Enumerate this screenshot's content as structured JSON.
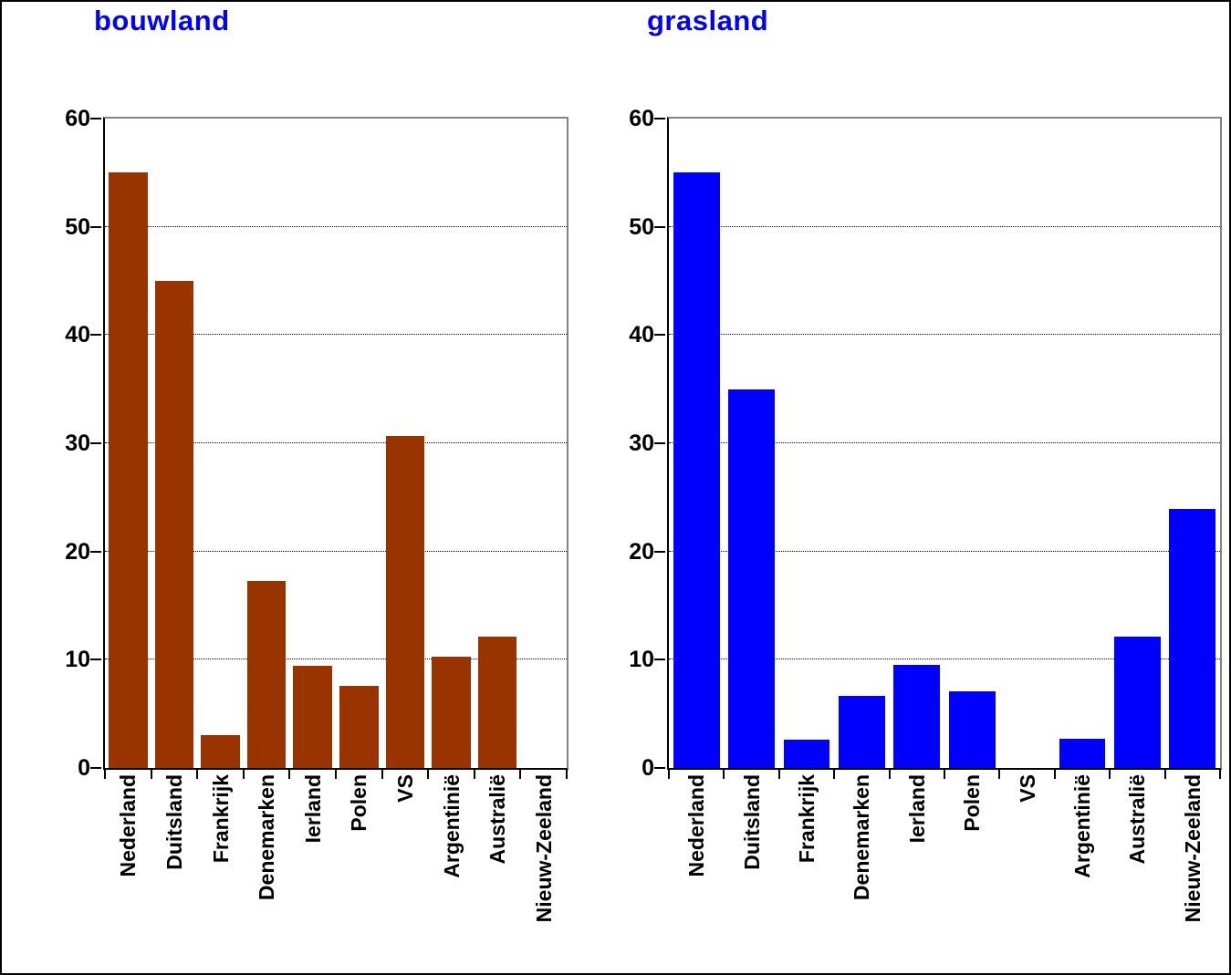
{
  "figure": {
    "background": "#FFFFFF",
    "frame_color": "#000000"
  },
  "chart_data": [
    {
      "type": "bar",
      "title": "bouwland",
      "title_color": "#0000FF",
      "bar_color": "#993300",
      "categories": [
        "Nederland",
        "Duitsland",
        "Frankrijk",
        "Denemarken",
        "Ierland",
        "Polen",
        "VS",
        "Argentinië",
        "Australië",
        "Nieuw-Zeeland"
      ],
      "values": [
        55,
        45,
        3,
        17.3,
        9.4,
        7.6,
        30.7,
        10.3,
        12.1,
        0
      ],
      "xlabel": "",
      "ylabel": "",
      "ylim": [
        0,
        60
      ],
      "yticks": [
        0,
        10,
        20,
        30,
        40,
        50,
        60
      ],
      "gridlines": "horizontal-dotted",
      "legend": "none"
    },
    {
      "type": "bar",
      "title": "grasland",
      "title_color": "#0000FF",
      "bar_color": "#0000FF",
      "categories": [
        "Nederland",
        "Duitsland",
        "Frankrijk",
        "Denemarken",
        "Ierland",
        "Polen",
        "VS",
        "Argentinië",
        "Australië",
        "Nieuw-Zeeland"
      ],
      "values": [
        55,
        35,
        2.6,
        6.7,
        9.5,
        7.1,
        0,
        2.7,
        12.1,
        23.9
      ],
      "xlabel": "",
      "ylabel": "",
      "ylim": [
        0,
        60
      ],
      "yticks": [
        0,
        10,
        20,
        30,
        40,
        50,
        60
      ],
      "gridlines": "horizontal-dotted",
      "legend": "none"
    }
  ]
}
